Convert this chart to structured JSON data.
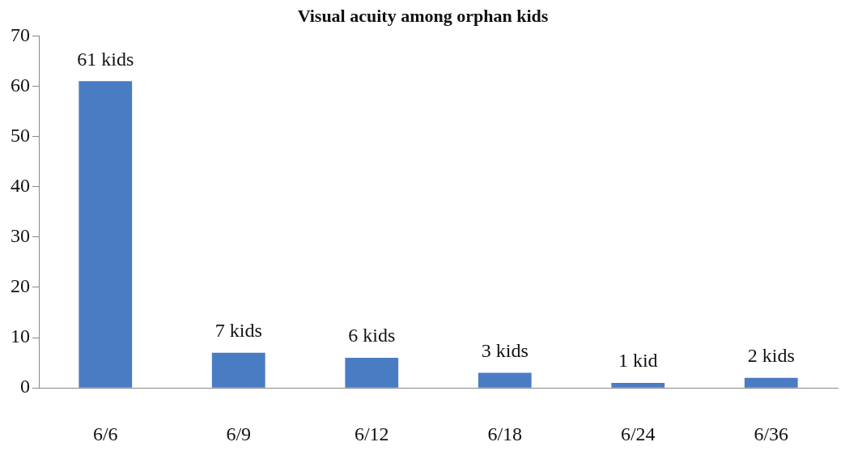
{
  "chart_data": {
    "type": "bar",
    "title": "Visual acuity among orphan kids",
    "categories": [
      "6/6",
      "6/9",
      "6/12",
      "6/18",
      "6/24",
      "6/36"
    ],
    "values": [
      61,
      7,
      6,
      3,
      1,
      2
    ],
    "value_labels": [
      "61 kids",
      "7 kids",
      "6 kids",
      "3 kids",
      "1 kid",
      "2 kids"
    ],
    "color": "#4a7cc4",
    "ylim": [
      0,
      70
    ],
    "yticks": [
      0,
      10,
      20,
      30,
      40,
      50,
      60,
      70
    ],
    "grid": false,
    "legend": false
  }
}
